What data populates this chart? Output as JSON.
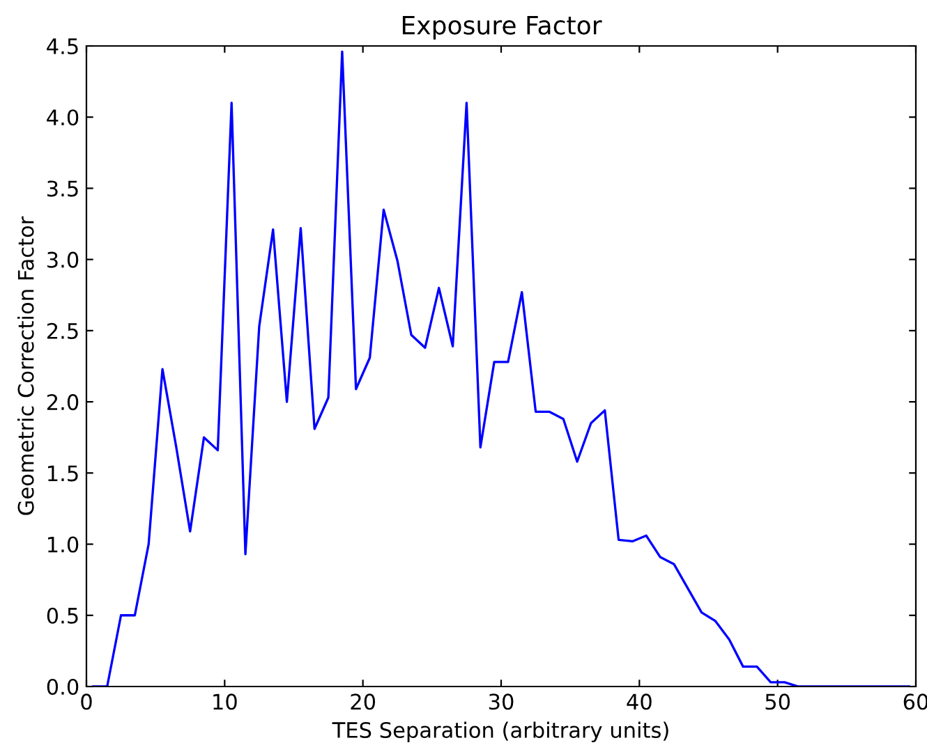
{
  "chart_data": {
    "type": "line",
    "title": "Exposure Factor",
    "xlabel": "TES Separation (arbitrary units)",
    "ylabel": "Geometric Correction Factor",
    "x": [
      0.5,
      1.5,
      2.5,
      3.5,
      4.5,
      5.5,
      6.5,
      7.5,
      8.5,
      9.5,
      10.5,
      11.5,
      12.5,
      13.5,
      14.5,
      15.5,
      16.5,
      17.5,
      18.5,
      19.5,
      20.5,
      21.5,
      22.5,
      23.5,
      24.5,
      25.5,
      26.5,
      27.5,
      28.5,
      29.5,
      30.5,
      31.5,
      32.5,
      33.5,
      34.5,
      35.5,
      36.5,
      37.5,
      38.5,
      39.5,
      40.5,
      41.5,
      42.5,
      43.5,
      44.5,
      45.5,
      46.5,
      47.5,
      48.5,
      49.5,
      50.5,
      51.5,
      52.5,
      53.5,
      54.5,
      55.5,
      56.5,
      57.5,
      58.5,
      59.5
    ],
    "series": [
      {
        "color": "#0000ff",
        "values": [
          0,
          0,
          0.5,
          0.5,
          1.0,
          2.23,
          1.68,
          1.09,
          1.75,
          1.66,
          4.1,
          0.93,
          2.53,
          3.21,
          2.0,
          3.22,
          1.81,
          2.03,
          4.46,
          2.09,
          2.31,
          3.35,
          2.99,
          2.47,
          2.38,
          2.8,
          2.39,
          4.1,
          1.68,
          2.28,
          2.28,
          2.77,
          1.93,
          1.93,
          1.88,
          1.58,
          1.85,
          1.94,
          1.03,
          1.02,
          1.06,
          0.91,
          0.86,
          0.69,
          0.52,
          0.46,
          0.33,
          0.14,
          0.14,
          0.03,
          0.03,
          0,
          0,
          0,
          0,
          0,
          0,
          0,
          0,
          0
        ]
      }
    ],
    "xlim": [
      0,
      60
    ],
    "xticks": [
      0,
      10,
      20,
      30,
      40,
      50,
      60
    ],
    "ylim": [
      0,
      4.5
    ],
    "yticks": [
      {
        "value": 0,
        "label": "0.0"
      },
      {
        "value": 0.5,
        "label": "0.5"
      },
      {
        "value": 1,
        "label": "1.0"
      },
      {
        "value": 1.5,
        "label": "1.5"
      },
      {
        "value": 2,
        "label": "2.0"
      },
      {
        "value": 2.5,
        "label": "2.5"
      },
      {
        "value": 3,
        "label": "3.0"
      },
      {
        "value": 3.5,
        "label": "3.5"
      },
      {
        "value": 4,
        "label": "4.0"
      },
      {
        "value": 4.5,
        "label": "4.5"
      }
    ]
  }
}
